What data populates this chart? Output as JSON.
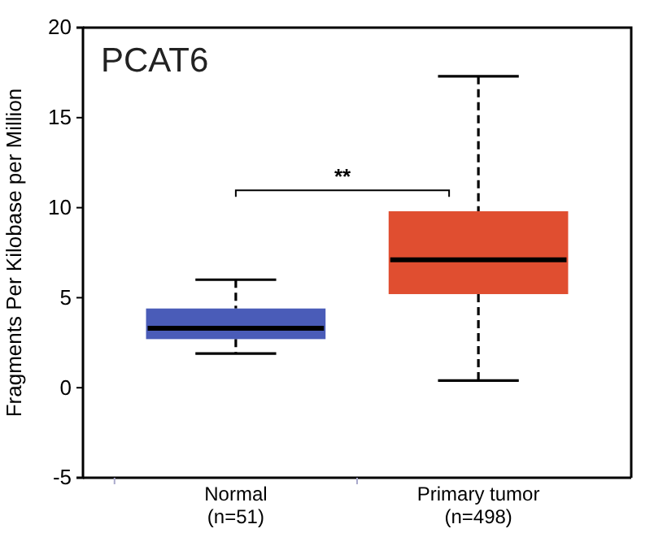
{
  "chart_data": {
    "type": "box",
    "title": "PCAT6",
    "ylabel": "Fragments Per Kilobase per Million",
    "categories": [
      "Normal\n(n=51)",
      "Primary tumor\n(n=498)"
    ],
    "colors": [
      "#4a5cb8",
      "#e04e30"
    ],
    "boxes": [
      {
        "low": 1.9,
        "q1": 2.7,
        "median": 3.3,
        "q3": 4.4,
        "high": 6.0
      },
      {
        "low": 0.4,
        "q1": 5.2,
        "median": 7.1,
        "q3": 9.8,
        "high": 17.3
      }
    ],
    "ylim": [
      -5,
      20
    ],
    "yticks": [
      -5,
      0,
      5,
      10,
      15,
      20
    ],
    "grid": false,
    "annotations": [
      "**"
    ]
  }
}
